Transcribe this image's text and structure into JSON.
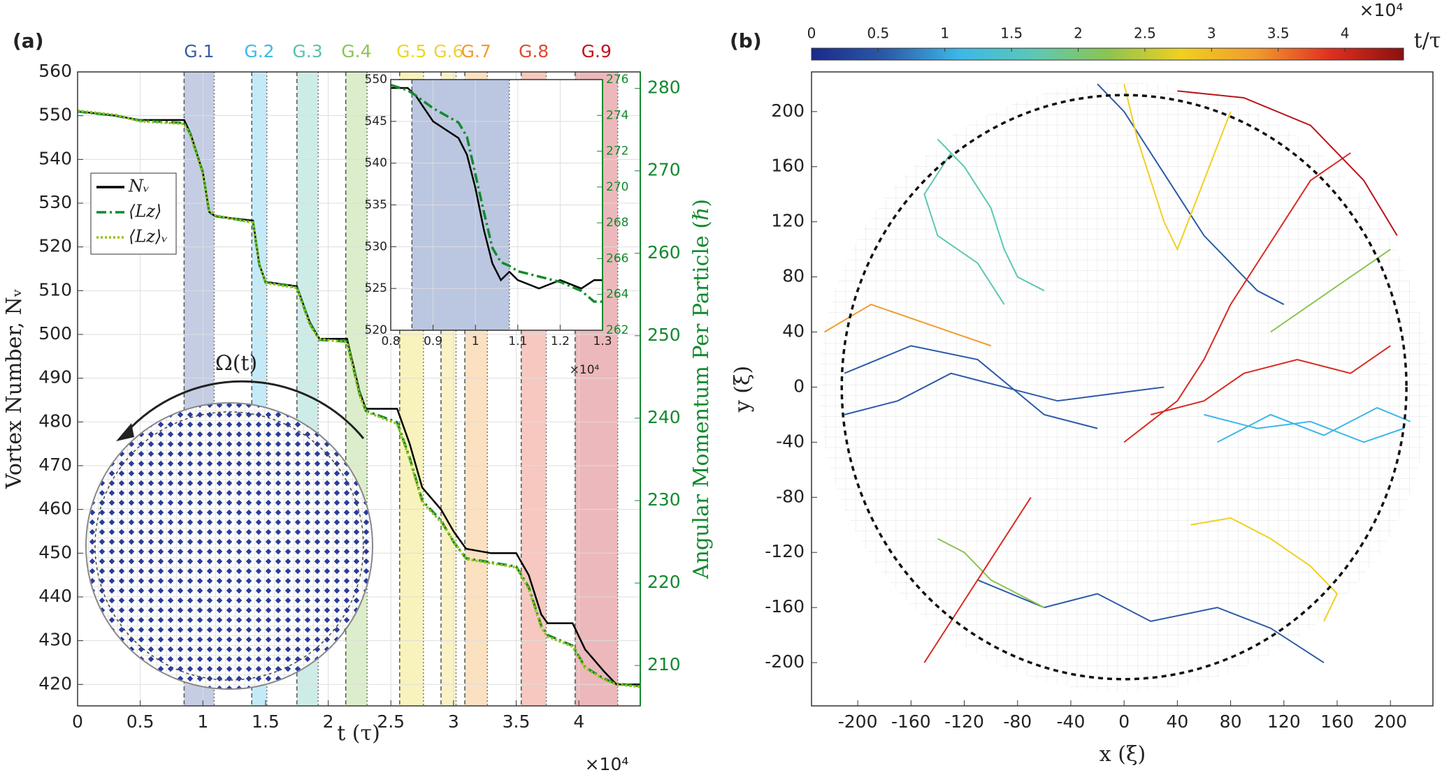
{
  "chart_data": [
    {
      "type": "line",
      "panel_label": "(a)",
      "xlabel": "t (τ)",
      "x_multiplier": "×10⁴",
      "ylabel": "Vortex Number, Nᵥ",
      "y2label": "Angular Momentum Per Particle (ℏ)",
      "annotation": "Ω(t)",
      "xlim": [
        0,
        4.49
      ],
      "xticks": [
        0,
        0.5,
        1,
        1.5,
        2,
        2.5,
        3,
        3.5,
        4
      ],
      "ylim": [
        415.1,
        560
      ],
      "yticks": [
        420,
        430,
        440,
        450,
        460,
        470,
        480,
        490,
        500,
        510,
        520,
        530,
        540,
        550,
        560
      ],
      "y2lim": [
        205.1,
        282
      ],
      "y2ticks": [
        210,
        220,
        230,
        240,
        250,
        260,
        270,
        280
      ],
      "grid": true,
      "legend": "upper left",
      "bands": [
        {
          "label": "G.1",
          "color": "#3b5ba5",
          "range": [
            0.85,
            1.09
          ]
        },
        {
          "label": "G.2",
          "color": "#3cb8e8",
          "range": [
            1.39,
            1.51
          ]
        },
        {
          "label": "G.3",
          "color": "#5cc0b0",
          "range": [
            1.75,
            1.92
          ]
        },
        {
          "label": "G.4",
          "color": "#8cc452",
          "range": [
            2.14,
            2.31
          ]
        },
        {
          "label": "G.5",
          "color": "#e8d820",
          "range": [
            2.57,
            2.76
          ]
        },
        {
          "label": "G.6",
          "color": "#f0d040",
          "range": [
            2.9,
            3.02
          ]
        },
        {
          "label": "G.7",
          "color": "#f29a2e",
          "range": [
            3.09,
            3.27
          ]
        },
        {
          "label": "G.8",
          "color": "#e04a30",
          "range": [
            3.54,
            3.74
          ]
        },
        {
          "label": "G.9",
          "color": "#c0141e",
          "range": [
            3.97,
            4.31
          ]
        }
      ],
      "x": [
        0,
        0.3,
        0.5,
        0.85,
        0.9,
        1.0,
        1.05,
        1.1,
        1.4,
        1.45,
        1.5,
        1.75,
        1.85,
        1.93,
        2.15,
        2.25,
        2.3,
        2.55,
        2.65,
        2.75,
        2.9,
        3.0,
        3.1,
        3.3,
        3.5,
        3.6,
        3.7,
        3.75,
        3.95,
        4.05,
        4.2,
        4.3,
        4.49
      ],
      "series": [
        {
          "name": "Nᵥ",
          "color": "#000000",
          "style": "solid",
          "axis": "y",
          "values": [
            551,
            550,
            549,
            549,
            546,
            537,
            528,
            527,
            526,
            516,
            512,
            511,
            503,
            499,
            499,
            487,
            483,
            483,
            475,
            465,
            460,
            455,
            451,
            450,
            450,
            445,
            436,
            434,
            434,
            428,
            423,
            420,
            420
          ]
        },
        {
          "name": "⟨Lz⟩",
          "color": "#138a2e",
          "style": "dashdot",
          "axis": "y2",
          "values": [
            277.2,
            276.7,
            276.1,
            275.8,
            274.5,
            269.8,
            265.0,
            264.5,
            263.8,
            258.6,
            256.5,
            255.9,
            251.6,
            249.5,
            249.3,
            243.0,
            240.9,
            239.5,
            235.2,
            230.0,
            227.6,
            225.0,
            223.0,
            222.5,
            222.0,
            219.5,
            214.8,
            213.7,
            212.4,
            209.8,
            208.4,
            207.8,
            207.5
          ]
        },
        {
          "name": "⟨Lz⟩ᵥ",
          "color": "#9ac21a",
          "style": "dotted",
          "axis": "y2",
          "values": [
            277.3,
            276.8,
            276.0,
            275.7,
            274.3,
            269.6,
            265.2,
            264.6,
            263.7,
            258.8,
            256.4,
            255.8,
            251.4,
            249.6,
            249.2,
            242.8,
            240.8,
            239.3,
            235.0,
            229.8,
            227.4,
            225.1,
            222.9,
            222.4,
            221.9,
            219.3,
            214.6,
            213.5,
            212.3,
            209.7,
            208.3,
            207.7,
            207.4
          ]
        }
      ]
    },
    {
      "type": "line",
      "x_multiplier": "×10⁴",
      "xlim": [
        0.8,
        1.3
      ],
      "xticks": [
        0.8,
        0.9,
        1,
        1.1,
        1.2,
        1.3
      ],
      "ylim": [
        520,
        550
      ],
      "yticks": [
        520,
        525,
        530,
        535,
        540,
        545,
        550
      ],
      "y2lim": [
        262,
        276
      ],
      "y2ticks": [
        262,
        264,
        266,
        268,
        270,
        272,
        274,
        276
      ],
      "grid": true,
      "bands": [
        {
          "color": "#3b5ba5",
          "range": [
            0.85,
            1.08
          ]
        }
      ],
      "x": [
        0.8,
        0.84,
        0.86,
        0.9,
        0.93,
        0.96,
        0.98,
        1.0,
        1.02,
        1.04,
        1.06,
        1.08,
        1.1,
        1.15,
        1.2,
        1.25,
        1.28,
        1.3
      ],
      "series": [
        {
          "color": "#000000",
          "style": "solid",
          "axis": "y",
          "values": [
            549,
            549,
            548,
            545,
            544,
            543,
            541,
            537,
            532,
            528,
            526,
            527,
            526,
            525,
            526,
            525,
            526,
            526
          ]
        },
        {
          "color": "#138a2e",
          "style": "dashdot",
          "axis": "y2",
          "values": [
            275.7,
            275.4,
            275.1,
            274.4,
            274.0,
            273.6,
            272.8,
            270.7,
            268.6,
            266.6,
            265.8,
            265.6,
            265.3,
            265.0,
            264.7,
            264.2,
            263.6,
            263.6
          ]
        }
      ]
    },
    {
      "type": "trajectory",
      "panel_label": "(b)",
      "xlabel": "x (ξ)",
      "ylabel": "y (ξ)",
      "xlim": [
        -234.7,
        231.9
      ],
      "xticks": [
        -200,
        -160,
        -120,
        -80,
        -40,
        0,
        40,
        80,
        120,
        160,
        200
      ],
      "ylim": [
        -231.4,
        228.8
      ],
      "yticks": [
        -200,
        -160,
        -120,
        -80,
        -40,
        0,
        40,
        80,
        120,
        160,
        200
      ],
      "circle_radius": 212,
      "colorbar": {
        "label": "t/τ",
        "multiplier": "×10⁴",
        "lim": [
          0,
          4.44
        ],
        "ticks": [
          0,
          0.5,
          1,
          1.5,
          2,
          2.5,
          3,
          3.5,
          4
        ],
        "colormap": [
          "#1a2a8a",
          "#2c5aa8",
          "#3cb8e8",
          "#5cc8b4",
          "#8cc452",
          "#f0d020",
          "#f29a2e",
          "#e03020",
          "#8a1010"
        ]
      },
      "series": [
        {
          "color": "#2c5aa8",
          "x": [
            -210,
            -170,
            -130,
            -90,
            -50,
            -10,
            30
          ],
          "y": [
            -20,
            -10,
            10,
            0,
            -10,
            -5,
            0
          ]
        },
        {
          "color": "#2c5aa8",
          "x": [
            -210,
            -160,
            -110,
            -60,
            -20
          ],
          "y": [
            10,
            30,
            20,
            -20,
            -30
          ]
        },
        {
          "color": "#2c5aa8",
          "x": [
            -20,
            0,
            20,
            40,
            60,
            80,
            100,
            120
          ],
          "y": [
            220,
            200,
            170,
            140,
            110,
            90,
            70,
            60
          ]
        },
        {
          "color": "#2c5aa8",
          "x": [
            -110,
            -60,
            -20,
            20,
            70,
            110,
            150
          ],
          "y": [
            -140,
            -160,
            -150,
            -170,
            -160,
            -175,
            -200
          ]
        },
        {
          "color": "#3cb8e8",
          "x": [
            60,
            100,
            140,
            180,
            210
          ],
          "y": [
            -20,
            -30,
            -25,
            -40,
            -30
          ]
        },
        {
          "color": "#3cb8e8",
          "x": [
            70,
            110,
            150,
            190,
            215
          ],
          "y": [
            -40,
            -20,
            -35,
            -15,
            -25
          ]
        },
        {
          "color": "#5cc8b4",
          "x": [
            -140,
            -120,
            -100,
            -90,
            -80,
            -60
          ],
          "y": [
            180,
            160,
            130,
            100,
            80,
            70
          ]
        },
        {
          "color": "#5cc8b4",
          "x": [
            -130,
            -150,
            -140,
            -110,
            -90
          ],
          "y": [
            170,
            140,
            110,
            90,
            60
          ]
        },
        {
          "color": "#8cc452",
          "x": [
            -140,
            -120,
            -100,
            -80,
            -60
          ],
          "y": [
            -110,
            -120,
            -140,
            -150,
            -160
          ]
        },
        {
          "color": "#8cc452",
          "x": [
            110,
            140,
            170,
            200
          ],
          "y": [
            40,
            60,
            80,
            100
          ]
        },
        {
          "color": "#f0d020",
          "x": [
            0,
            10,
            20,
            30,
            40,
            60,
            80
          ],
          "y": [
            220,
            180,
            150,
            120,
            100,
            150,
            200
          ]
        },
        {
          "color": "#f0d020",
          "x": [
            50,
            80,
            110,
            140,
            160,
            150
          ],
          "y": [
            -100,
            -95,
            -110,
            -130,
            -150,
            -170
          ]
        },
        {
          "color": "#f29a2e",
          "x": [
            -225,
            -190,
            -160,
            -130,
            -100
          ],
          "y": [
            40,
            60,
            50,
            40,
            30
          ]
        },
        {
          "color": "#d92b22",
          "x": [
            0,
            40,
            60,
            80,
            100,
            120,
            140,
            170
          ],
          "y": [
            -40,
            -10,
            20,
            60,
            90,
            120,
            150,
            170
          ]
        },
        {
          "color": "#d92b22",
          "x": [
            20,
            60,
            90,
            130,
            170,
            200
          ],
          "y": [
            -20,
            -10,
            10,
            20,
            10,
            30
          ]
        },
        {
          "color": "#d92b22",
          "x": [
            -150,
            -130,
            -110,
            -90,
            -70
          ],
          "y": [
            -200,
            -170,
            -140,
            -110,
            -80
          ]
        },
        {
          "color": "#b8141a",
          "x": [
            40,
            90,
            140,
            180,
            205
          ],
          "y": [
            215,
            210,
            190,
            150,
            110
          ]
        }
      ]
    }
  ]
}
